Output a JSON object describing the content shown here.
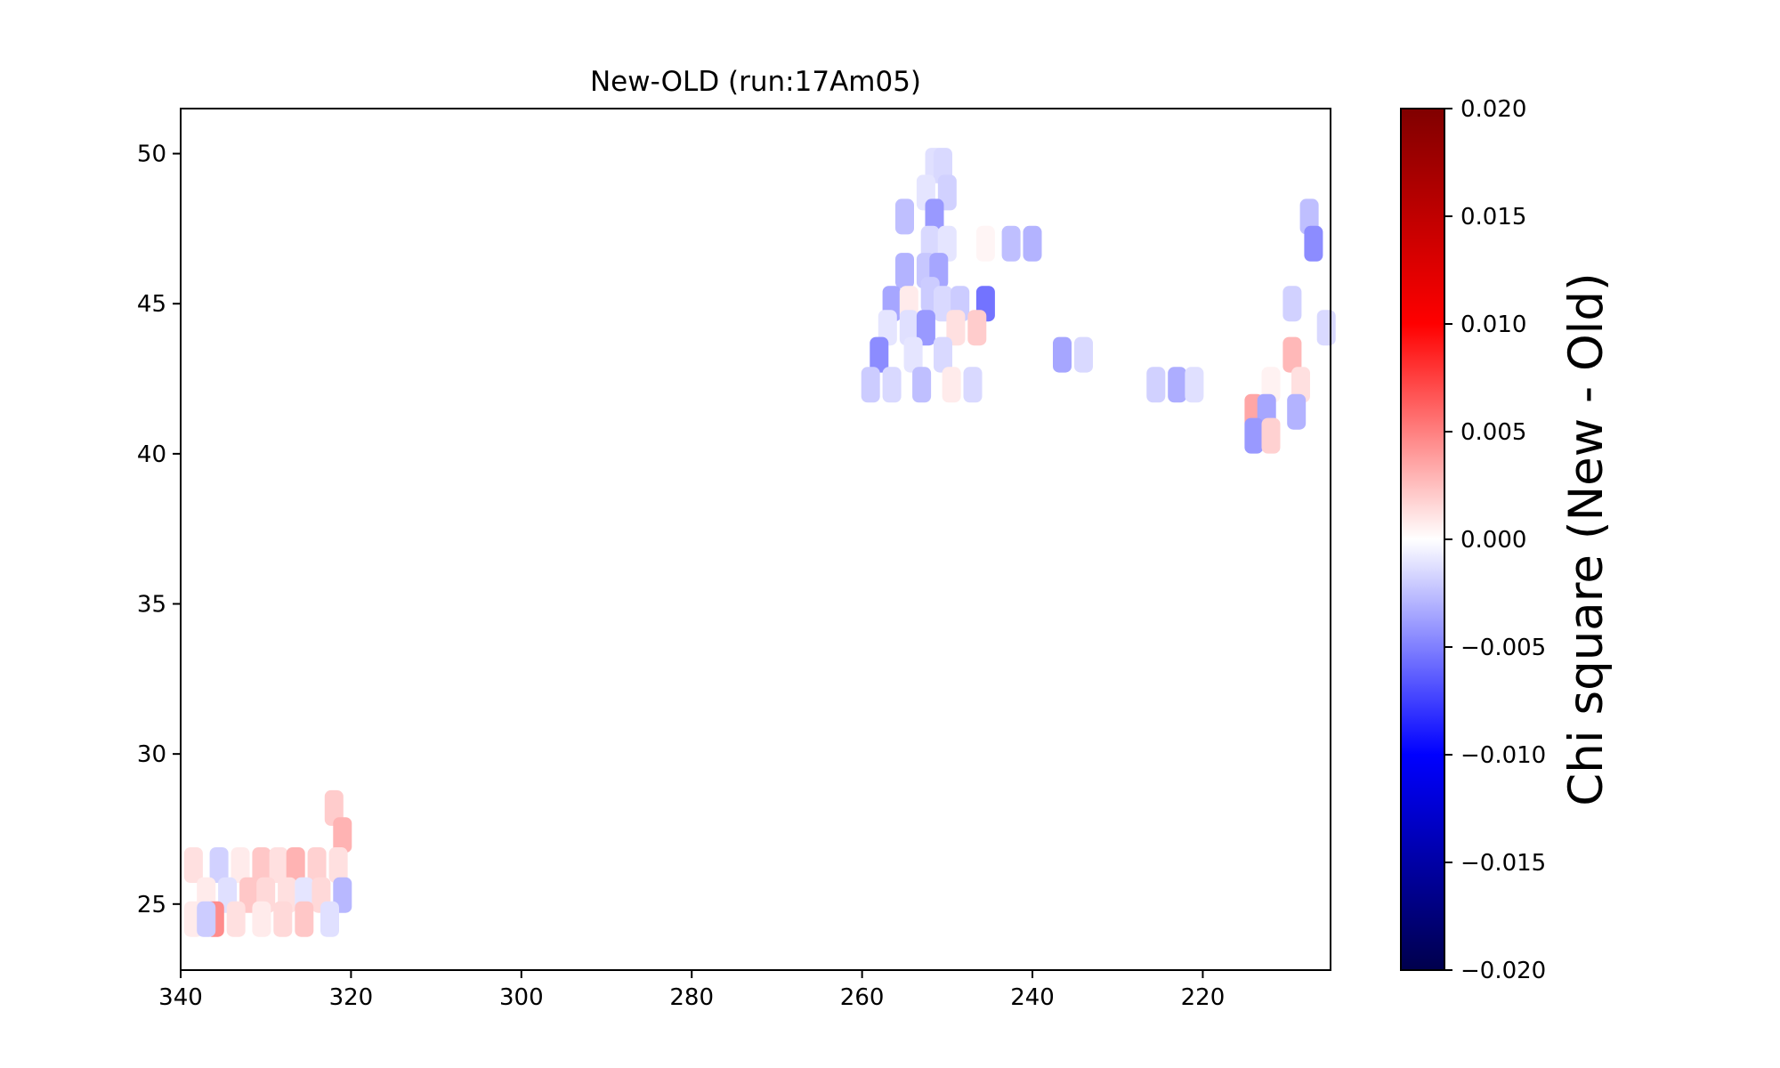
{
  "chart_data": {
    "type": "scatter",
    "title": "New-OLD (run:17Am05)",
    "xlabel": "",
    "ylabel": "",
    "xlim": [
      340,
      205
    ],
    "ylim": [
      22.8,
      51.5
    ],
    "x_ticks": [
      340,
      320,
      300,
      280,
      260,
      240,
      220
    ],
    "x_tick_labels": [
      "340",
      "320",
      "300",
      "280",
      "260",
      "240",
      "220"
    ],
    "y_ticks": [
      25,
      30,
      35,
      40,
      45,
      50
    ],
    "y_tick_labels": [
      "25",
      "30",
      "35",
      "40",
      "45",
      "50"
    ],
    "grid": false,
    "colormap": "seismic",
    "colorbar": {
      "label": "Chi square (New - Old)",
      "vmin": -0.02,
      "vmax": 0.02,
      "ticks": [
        0.02,
        0.015,
        0.01,
        0.005,
        0.0,
        -0.005,
        -0.01,
        -0.015,
        -0.02
      ],
      "tick_labels": [
        "0.020",
        "0.015",
        "0.010",
        "0.005",
        "0.000",
        "−0.005",
        "−0.010",
        "−0.015",
        "−0.020"
      ]
    },
    "series": [
      {
        "points": [
          {
            "x": 251.5,
            "y": 49.6,
            "v": -0.0012
          },
          {
            "x": 250.5,
            "y": 49.6,
            "v": -0.0015
          },
          {
            "x": 252.5,
            "y": 48.7,
            "v": -0.001
          },
          {
            "x": 250.0,
            "y": 48.7,
            "v": -0.0018
          },
          {
            "x": 255.0,
            "y": 47.9,
            "v": -0.0025
          },
          {
            "x": 251.5,
            "y": 47.9,
            "v": -0.004
          },
          {
            "x": 252.0,
            "y": 47.0,
            "v": -0.0015
          },
          {
            "x": 250.0,
            "y": 47.0,
            "v": -0.001
          },
          {
            "x": 245.5,
            "y": 47.0,
            "v": 0.0004
          },
          {
            "x": 242.5,
            "y": 47.0,
            "v": -0.0025
          },
          {
            "x": 240.0,
            "y": 47.0,
            "v": -0.003
          },
          {
            "x": 252.5,
            "y": 46.1,
            "v": -0.0022
          },
          {
            "x": 251.0,
            "y": 46.1,
            "v": -0.0035
          },
          {
            "x": 255.0,
            "y": 46.1,
            "v": -0.003
          },
          {
            "x": 252.0,
            "y": 45.3,
            "v": -0.002
          },
          {
            "x": 256.5,
            "y": 45.0,
            "v": -0.0035
          },
          {
            "x": 254.5,
            "y": 45.0,
            "v": 0.0008
          },
          {
            "x": 250.5,
            "y": 45.0,
            "v": -0.0015
          },
          {
            "x": 248.5,
            "y": 45.0,
            "v": -0.002
          },
          {
            "x": 245.5,
            "y": 45.0,
            "v": -0.0055
          },
          {
            "x": 257.0,
            "y": 44.2,
            "v": -0.001
          },
          {
            "x": 254.5,
            "y": 44.2,
            "v": -0.0012
          },
          {
            "x": 252.5,
            "y": 44.2,
            "v": -0.004
          },
          {
            "x": 249.0,
            "y": 44.2,
            "v": 0.0012
          },
          {
            "x": 246.5,
            "y": 44.2,
            "v": 0.002
          },
          {
            "x": 258.0,
            "y": 43.3,
            "v": -0.0045
          },
          {
            "x": 254.0,
            "y": 43.3,
            "v": -0.001
          },
          {
            "x": 250.5,
            "y": 43.3,
            "v": -0.0015
          },
          {
            "x": 236.5,
            "y": 43.3,
            "v": -0.0035
          },
          {
            "x": 234.0,
            "y": 43.3,
            "v": -0.0015
          },
          {
            "x": 259.0,
            "y": 42.3,
            "v": -0.002
          },
          {
            "x": 256.5,
            "y": 42.3,
            "v": -0.0015
          },
          {
            "x": 253.0,
            "y": 42.3,
            "v": -0.0025
          },
          {
            "x": 249.5,
            "y": 42.3,
            "v": 0.0008
          },
          {
            "x": 247.0,
            "y": 42.3,
            "v": -0.0015
          },
          {
            "x": 225.5,
            "y": 42.3,
            "v": -0.0018
          },
          {
            "x": 223.0,
            "y": 42.3,
            "v": -0.0032
          },
          {
            "x": 221.0,
            "y": 42.3,
            "v": -0.0012
          },
          {
            "x": 207.5,
            "y": 47.9,
            "v": -0.0025
          },
          {
            "x": 207.0,
            "y": 47.0,
            "v": -0.0045
          },
          {
            "x": 209.5,
            "y": 45.0,
            "v": -0.0018
          },
          {
            "x": 205.5,
            "y": 44.2,
            "v": -0.0015
          },
          {
            "x": 209.5,
            "y": 43.3,
            "v": 0.0028
          },
          {
            "x": 212.0,
            "y": 42.3,
            "v": 0.0005
          },
          {
            "x": 208.5,
            "y": 42.3,
            "v": 0.0012
          },
          {
            "x": 214.0,
            "y": 41.4,
            "v": 0.0035
          },
          {
            "x": 212.5,
            "y": 41.4,
            "v": -0.0035
          },
          {
            "x": 209.0,
            "y": 41.4,
            "v": -0.003
          },
          {
            "x": 214.0,
            "y": 40.6,
            "v": -0.004
          },
          {
            "x": 212.0,
            "y": 40.6,
            "v": 0.0018
          },
          {
            "x": 322.0,
            "y": 28.2,
            "v": 0.002
          },
          {
            "x": 321.0,
            "y": 27.3,
            "v": 0.003
          },
          {
            "x": 338.5,
            "y": 26.3,
            "v": 0.0012
          },
          {
            "x": 335.5,
            "y": 26.3,
            "v": -0.0018
          },
          {
            "x": 333.0,
            "y": 26.3,
            "v": 0.0008
          },
          {
            "x": 330.5,
            "y": 26.3,
            "v": 0.0022
          },
          {
            "x": 328.5,
            "y": 26.3,
            "v": 0.0012
          },
          {
            "x": 326.5,
            "y": 26.3,
            "v": 0.003
          },
          {
            "x": 324.0,
            "y": 26.3,
            "v": 0.0018
          },
          {
            "x": 321.5,
            "y": 26.3,
            "v": 0.0012
          },
          {
            "x": 337.0,
            "y": 25.3,
            "v": 0.0008
          },
          {
            "x": 334.5,
            "y": 25.3,
            "v": -0.0012
          },
          {
            "x": 332.0,
            "y": 25.3,
            "v": 0.0022
          },
          {
            "x": 330.0,
            "y": 25.3,
            "v": 0.0015
          },
          {
            "x": 327.5,
            "y": 25.3,
            "v": 0.0012
          },
          {
            "x": 325.5,
            "y": 25.3,
            "v": -0.001
          },
          {
            "x": 323.5,
            "y": 25.3,
            "v": 0.0015
          },
          {
            "x": 321.0,
            "y": 25.3,
            "v": -0.0028
          },
          {
            "x": 338.5,
            "y": 24.5,
            "v": 0.0008
          },
          {
            "x": 336.0,
            "y": 24.5,
            "v": 0.0045
          },
          {
            "x": 337.0,
            "y": 24.5,
            "v": -0.002
          },
          {
            "x": 333.5,
            "y": 24.5,
            "v": 0.0012
          },
          {
            "x": 330.5,
            "y": 24.5,
            "v": 0.0008
          },
          {
            "x": 328.0,
            "y": 24.5,
            "v": 0.0015
          },
          {
            "x": 325.5,
            "y": 24.5,
            "v": 0.0022
          },
          {
            "x": 322.5,
            "y": 24.5,
            "v": -0.0012
          }
        ]
      }
    ]
  }
}
